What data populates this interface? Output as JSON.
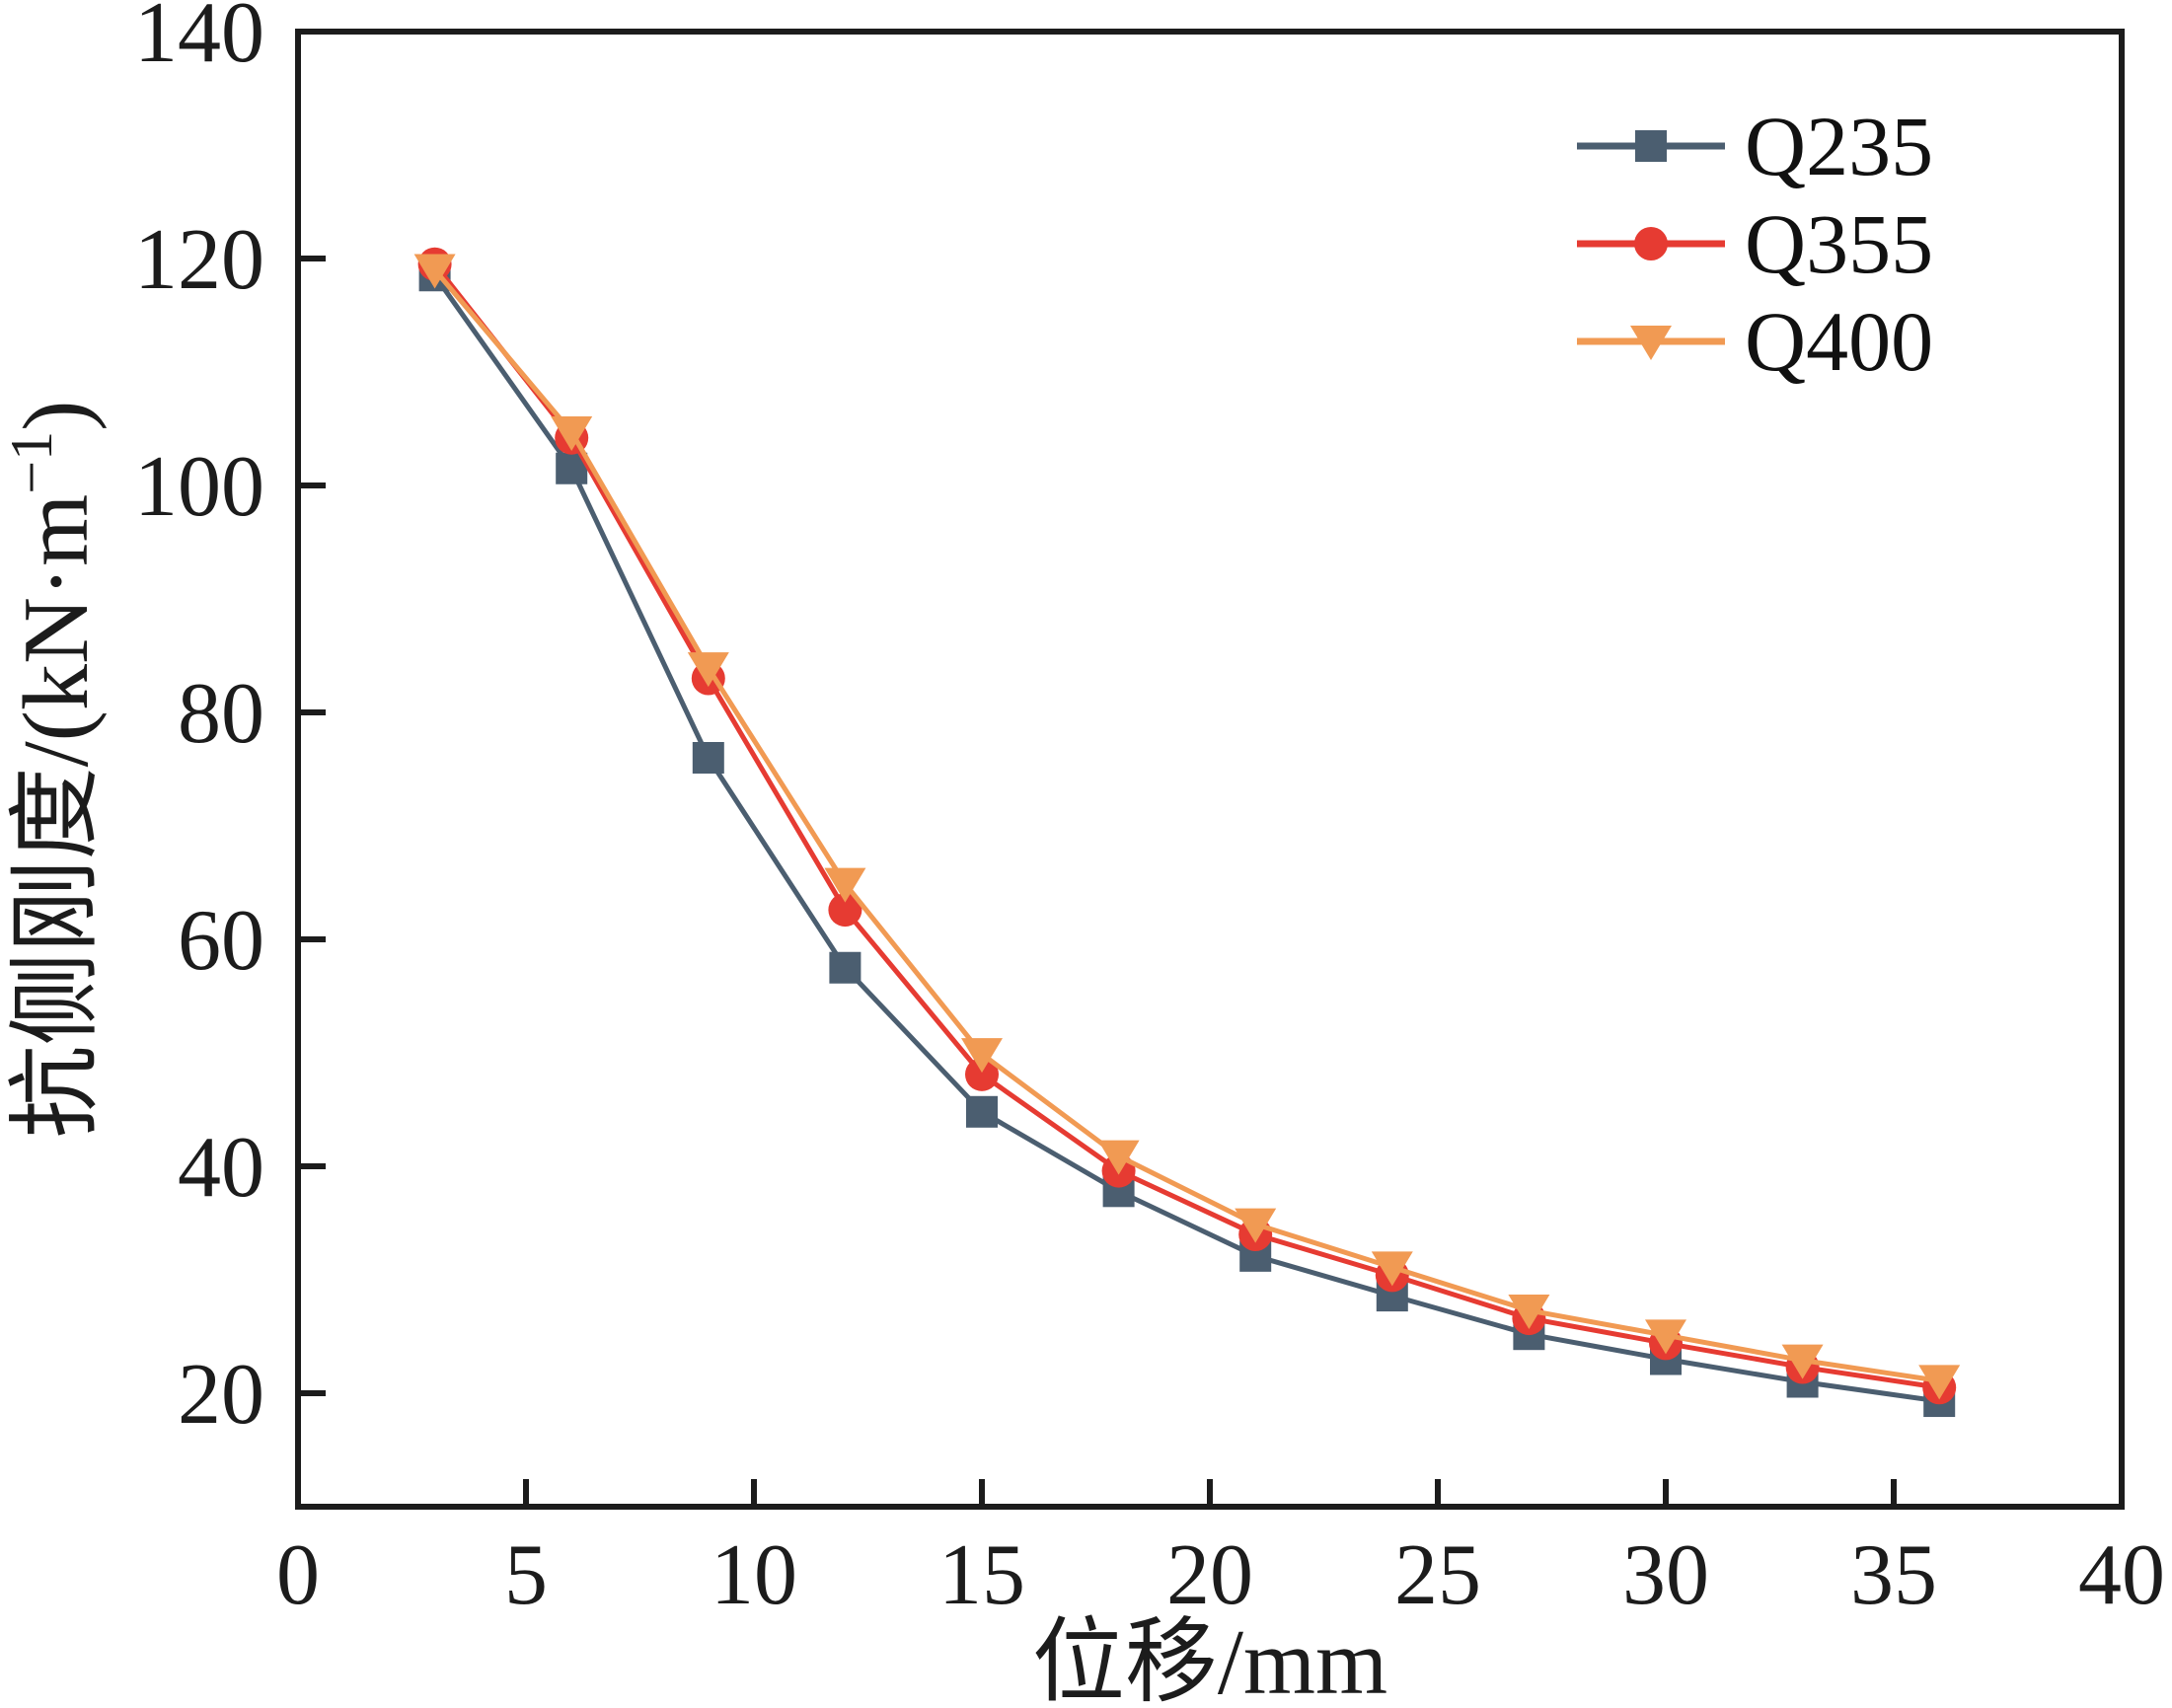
{
  "figure": {
    "background": "#ffffff",
    "axis_color": "#1c1c1c",
    "frame": true
  },
  "legend": {
    "position": "top-right",
    "items": [
      {
        "label": "Q235",
        "marker": "square",
        "color": "#4b5e70"
      },
      {
        "label": "Q355",
        "marker": "circle",
        "color": "#e63b32"
      },
      {
        "label": "Q400",
        "marker": "triangle-down",
        "color": "#f19a53"
      }
    ]
  },
  "chart_data": {
    "type": "line",
    "x": [
      3,
      6,
      9,
      12,
      15,
      18,
      21,
      24,
      27,
      30,
      33,
      36
    ],
    "series": [
      {
        "name": "Q235",
        "marker": "square",
        "color": "#4b5e70",
        "values": [
          118.5,
          101.5,
          76.0,
          57.5,
          44.8,
          37.8,
          32.1,
          28.6,
          25.2,
          23.0,
          21.0,
          19.3
        ]
      },
      {
        "name": "Q355",
        "marker": "circle",
        "color": "#e63b32",
        "values": [
          119.5,
          104.2,
          83.0,
          62.6,
          48.1,
          39.6,
          34.0,
          30.4,
          26.6,
          24.4,
          22.3,
          20.5
        ]
      },
      {
        "name": "Q400",
        "marker": "triangle-down",
        "color": "#f19a53",
        "values": [
          119.0,
          104.7,
          83.9,
          64.9,
          49.9,
          40.9,
          34.9,
          31.1,
          27.3,
          25.1,
          22.9,
          21.1
        ]
      }
    ],
    "xlabel": "位移/mm",
    "ylabel": "抗侧刚度/(kN·m⁻¹)",
    "ylabel_parts": {
      "main": "抗侧刚度/(kN·m",
      "sup": "−1",
      "end": ")"
    },
    "xlim": [
      0,
      40
    ],
    "ylim": [
      10,
      140
    ],
    "x_ticks": [
      0,
      5,
      10,
      15,
      20,
      25,
      30,
      35,
      40
    ],
    "y_ticks": [
      20,
      40,
      60,
      80,
      100,
      120,
      140
    ],
    "grid": false,
    "legend_position": "top-right"
  }
}
